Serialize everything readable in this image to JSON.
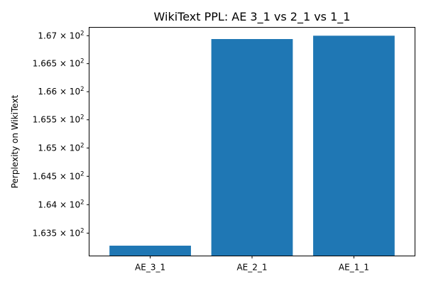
{
  "chart_data": {
    "type": "bar",
    "title": "WikiText PPL: AE 3_1 vs 2_1 vs 1_1",
    "xlabel": "",
    "ylabel": "Perplexity on WikiText",
    "categories": [
      "AE_3_1",
      "AE_2_1",
      "AE_1_1"
    ],
    "values": [
      163.28,
      166.94,
      167.0
    ],
    "ylim": [
      163.1,
      167.15
    ],
    "y_ticks": [
      {
        "value": 163.5,
        "mantissa": "1.635"
      },
      {
        "value": 164.0,
        "mantissa": "1.64"
      },
      {
        "value": 164.5,
        "mantissa": "1.645"
      },
      {
        "value": 165.0,
        "mantissa": "1.65"
      },
      {
        "value": 165.5,
        "mantissa": "1.655"
      },
      {
        "value": 166.0,
        "mantissa": "1.66"
      },
      {
        "value": 166.5,
        "mantissa": "1.665"
      },
      {
        "value": 167.0,
        "mantissa": "1.67"
      }
    ],
    "y_tick_multiplier": "× 10",
    "y_tick_exponent": "2",
    "y_scale": "log",
    "grid": false,
    "colors": {
      "bar": "#1f77b4"
    }
  }
}
